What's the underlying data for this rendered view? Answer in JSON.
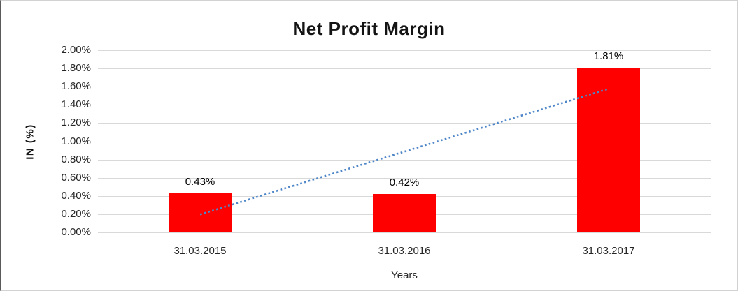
{
  "chart_data": {
    "type": "bar",
    "title": "Net Profit Margin",
    "xlabel": "Years",
    "ylabel": "IN (%)",
    "categories": [
      "31.03.2015",
      "31.03.2016",
      "31.03.2017"
    ],
    "values": [
      0.43,
      0.42,
      1.81
    ],
    "data_labels": [
      "0.43%",
      "0.42%",
      "1.81%"
    ],
    "yticks": [
      "2.00%",
      "1.80%",
      "1.60%",
      "1.40%",
      "1.20%",
      "1.00%",
      "0.80%",
      "0.60%",
      "0.40%",
      "0.20%",
      "0.00%"
    ],
    "ylim": [
      0,
      2
    ],
    "grid": true,
    "legend": "none",
    "bar_color": "#ff0000",
    "gridline_color": "#d9d9d9",
    "trendline": {
      "type": "linear",
      "style": "dotted",
      "color": "#4e86c8",
      "start_value": 0.197,
      "end_value": 1.577
    }
  }
}
